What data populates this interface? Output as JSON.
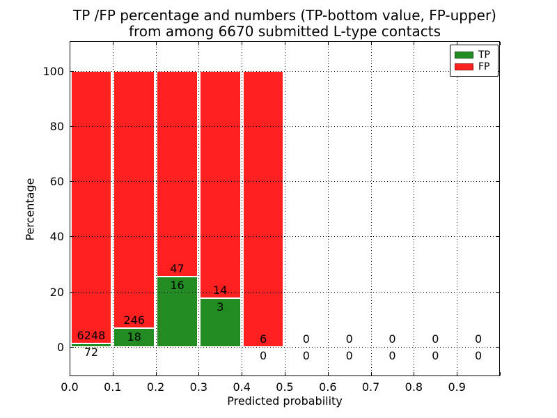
{
  "figure": {
    "background": "#ffffff",
    "title_line1": "TP /FP percentage and numbers (TP-bottom value, FP-upper)",
    "title_line2": "from among 6670 submitted L-type contacts"
  },
  "chart_data": {
    "type": "bar",
    "subtype": "stacked-percentage-histogram",
    "title": "TP /FP percentage and numbers (TP-bottom value, FP-upper) from among 6670 submitted L-type contacts",
    "xlabel": "Predicted probability",
    "ylabel": "Percentage",
    "total_contacts": 6670,
    "xlim": [
      0.0,
      1.0
    ],
    "ylim": [
      -11,
      110.5
    ],
    "grid": true,
    "grid_style": "dotted",
    "x_tick_labels": [
      "0.0",
      "0.1",
      "0.2",
      "0.3",
      "0.4",
      "0.5",
      "0.6",
      "0.7",
      "0.8",
      "0.9"
    ],
    "y_ticks": [
      0,
      20,
      40,
      60,
      80,
      100
    ],
    "y_tick_labels": [
      "0",
      "20",
      "40",
      "60",
      "80",
      "100"
    ],
    "bin_width": 0.1,
    "categories": [
      "0.0-0.1",
      "0.1-0.2",
      "0.2-0.3",
      "0.3-0.4",
      "0.4-0.5",
      "0.5-0.6",
      "0.6-0.7",
      "0.7-0.8",
      "0.8-0.9",
      "0.9-1.0"
    ],
    "series": [
      {
        "name": "TP",
        "color": "#228b22",
        "counts": [
          72,
          18,
          16,
          3,
          0,
          0,
          0,
          0,
          0,
          0
        ]
      },
      {
        "name": "FP",
        "color": "#ff2020",
        "counts": [
          6248,
          246,
          47,
          14,
          6,
          0,
          0,
          0,
          0,
          0
        ]
      }
    ],
    "bars_reach_percent": 100,
    "legend": {
      "position": "upper right",
      "entries": [
        {
          "label": "TP",
          "color": "#228b22"
        },
        {
          "label": "FP",
          "color": "#ff2020"
        }
      ]
    }
  },
  "colors": {
    "tp": "#228b22",
    "fp": "#ff2020",
    "frame": "#000000",
    "text": "#000000",
    "background": "#ffffff"
  }
}
